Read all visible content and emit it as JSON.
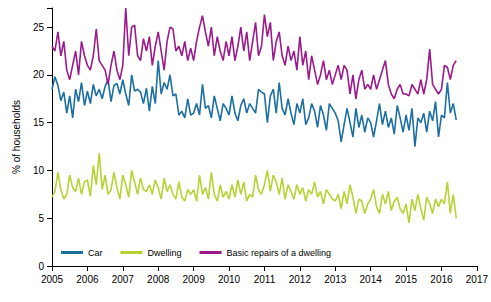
{
  "chart_data": {
    "type": "line",
    "y_label": "% of households",
    "xlim": [
      2005,
      2017
    ],
    "xticks": [
      2005,
      2006,
      2007,
      2008,
      2009,
      2010,
      2011,
      2012,
      2013,
      2014,
      2015,
      2016,
      2017
    ],
    "ylim": [
      0,
      27
    ],
    "yticks": [
      0,
      5,
      10,
      15,
      20,
      25
    ],
    "grid": false,
    "legend": "lower left",
    "x": [
      2005,
      2005.083,
      2005.167,
      2005.25,
      2005.333,
      2005.417,
      2005.5,
      2005.583,
      2005.667,
      2005.75,
      2005.833,
      2005.917,
      2006,
      2006.083,
      2006.167,
      2006.25,
      2006.333,
      2006.417,
      2006.5,
      2006.583,
      2006.667,
      2006.75,
      2006.833,
      2006.917,
      2007,
      2007.083,
      2007.167,
      2007.25,
      2007.333,
      2007.417,
      2007.5,
      2007.583,
      2007.667,
      2007.75,
      2007.833,
      2007.917,
      2008,
      2008.083,
      2008.167,
      2008.25,
      2008.333,
      2008.417,
      2008.5,
      2008.583,
      2008.667,
      2008.75,
      2008.833,
      2008.917,
      2009,
      2009.083,
      2009.167,
      2009.25,
      2009.333,
      2009.417,
      2009.5,
      2009.583,
      2009.667,
      2009.75,
      2009.833,
      2009.917,
      2010,
      2010.083,
      2010.167,
      2010.25,
      2010.333,
      2010.417,
      2010.5,
      2010.583,
      2010.667,
      2010.75,
      2010.833,
      2010.917,
      2011,
      2011.083,
      2011.167,
      2011.25,
      2011.333,
      2011.417,
      2011.5,
      2011.583,
      2011.667,
      2011.75,
      2011.833,
      2011.917,
      2012,
      2012.083,
      2012.167,
      2012.25,
      2012.333,
      2012.417,
      2012.5,
      2012.583,
      2012.667,
      2012.75,
      2012.833,
      2012.917,
      2013,
      2013.083,
      2013.167,
      2013.25,
      2013.333,
      2013.417,
      2013.5,
      2013.583,
      2013.667,
      2013.75,
      2013.833,
      2013.917,
      2014,
      2014.083,
      2014.167,
      2014.25,
      2014.333,
      2014.417,
      2014.5,
      2014.583,
      2014.667,
      2014.75,
      2014.833,
      2014.917,
      2015,
      2015.083,
      2015.167,
      2015.25,
      2015.333,
      2015.417,
      2015.5,
      2015.583,
      2015.667,
      2015.75,
      2015.833,
      2015.917,
      2016,
      2016.083,
      2016.167,
      2016.25,
      2016.333,
      2016.417
    ],
    "series": [
      {
        "name": "Car",
        "color": "#1b6fa3",
        "values": [
          18.5,
          19.8,
          18.9,
          17.3,
          18.2,
          16.0,
          17.8,
          15.5,
          18.5,
          17.2,
          19.2,
          16.8,
          18.3,
          17.0,
          19.0,
          17.8,
          18.5,
          17.5,
          18.8,
          19.5,
          17.2,
          18.9,
          19.1,
          18.0,
          19.5,
          18.0,
          16.8,
          20.0,
          18.3,
          18.5,
          18.2,
          17.0,
          18.6,
          16.2,
          18.8,
          17.0,
          21.5,
          18.0,
          19.2,
          18.5,
          20.0,
          17.8,
          18.0,
          15.8,
          16.2,
          15.5,
          17.5,
          15.8,
          16.0,
          17.0,
          15.8,
          19.0,
          16.5,
          16.8,
          15.5,
          17.8,
          16.5,
          15.2,
          17.0,
          16.5,
          15.8,
          17.8,
          16.0,
          15.2,
          16.8,
          17.5,
          16.0,
          17.0,
          16.5,
          16.0,
          18.5,
          18.2,
          18.0,
          15.0,
          17.8,
          18.5,
          16.0,
          19.2,
          16.5,
          15.8,
          17.5,
          16.0,
          14.8,
          17.0,
          16.0,
          17.5,
          14.8,
          15.5,
          17.0,
          16.2,
          14.5,
          16.8,
          15.8,
          14.2,
          17.0,
          16.5,
          16.0,
          15.2,
          13.0,
          14.8,
          16.5,
          15.0,
          13.5,
          16.5,
          14.5,
          15.8,
          14.0,
          15.5,
          15.0,
          13.5,
          15.2,
          17.0,
          14.8,
          16.2,
          14.5,
          15.5,
          13.8,
          16.8,
          15.5,
          14.0,
          15.8,
          14.2,
          16.5,
          12.5,
          15.5,
          15.0,
          16.0,
          14.0,
          16.2,
          15.2,
          17.2,
          13.5,
          15.8,
          15.5,
          19.2,
          16.0,
          17.0,
          15.3
        ]
      },
      {
        "name": "Dwelling",
        "color": "#b6d334",
        "values": [
          7.2,
          7.8,
          9.8,
          8.0,
          7.0,
          7.5,
          9.5,
          8.2,
          7.8,
          9.2,
          7.5,
          8.8,
          9.0,
          7.3,
          10.5,
          8.5,
          11.8,
          8.0,
          9.5,
          7.5,
          8.0,
          9.8,
          8.2,
          7.0,
          9.5,
          8.5,
          7.2,
          10.0,
          8.8,
          7.5,
          9.2,
          8.0,
          7.8,
          8.5,
          7.5,
          9.0,
          8.2,
          7.0,
          9.2,
          7.8,
          8.5,
          7.5,
          7.0,
          8.8,
          7.2,
          6.8,
          8.0,
          7.5,
          8.0,
          6.8,
          9.5,
          7.5,
          8.2,
          7.0,
          9.8,
          7.5,
          6.8,
          8.5,
          7.2,
          7.8,
          7.0,
          8.5,
          7.2,
          9.0,
          7.5,
          8.8,
          6.8,
          7.5,
          7.2,
          9.5,
          8.0,
          7.5,
          8.5,
          10.0,
          7.8,
          9.5,
          8.8,
          7.5,
          9.2,
          7.0,
          8.5,
          7.8,
          7.0,
          8.5,
          7.5,
          8.2,
          6.8,
          8.0,
          7.5,
          8.8,
          7.2,
          7.8,
          6.5,
          8.0,
          7.5,
          7.0,
          6.8,
          7.5,
          6.0,
          7.8,
          6.5,
          8.5,
          7.2,
          5.5,
          7.0,
          6.8,
          5.5,
          6.5,
          7.0,
          8.0,
          6.2,
          5.5,
          7.5,
          6.5,
          7.8,
          5.8,
          6.8,
          7.2,
          6.0,
          5.5,
          6.5,
          4.5,
          7.0,
          5.8,
          7.5,
          6.0,
          4.8,
          7.2,
          6.5,
          5.5,
          7.0,
          6.2,
          7.0,
          6.5,
          8.8,
          5.5,
          7.5,
          5.0
        ]
      },
      {
        "name": "Basic repairs of a dwelling",
        "color": "#9c1b8c",
        "values": [
          23.0,
          22.5,
          24.5,
          22.0,
          23.5,
          20.5,
          19.5,
          21.0,
          22.5,
          20.0,
          23.5,
          22.0,
          21.0,
          20.5,
          22.0,
          24.8,
          21.5,
          21.0,
          20.5,
          19.0,
          21.0,
          22.5,
          20.5,
          19.5,
          21.0,
          27.0,
          22.0,
          25.0,
          25.2,
          22.0,
          21.5,
          23.8,
          22.5,
          24.0,
          21.0,
          23.0,
          24.5,
          22.5,
          20.5,
          23.5,
          25.0,
          24.8,
          22.5,
          23.0,
          22.0,
          23.5,
          21.5,
          22.8,
          21.5,
          23.5,
          25.0,
          26.2,
          24.5,
          23.0,
          25.0,
          22.0,
          24.0,
          22.5,
          21.5,
          23.5,
          22.0,
          24.0,
          21.5,
          23.0,
          25.0,
          22.5,
          24.5,
          21.5,
          23.5,
          25.5,
          22.0,
          23.0,
          26.3,
          24.0,
          25.5,
          21.5,
          23.5,
          24.5,
          22.0,
          21.0,
          23.0,
          21.5,
          22.5,
          20.5,
          24.0,
          21.0,
          22.5,
          19.5,
          22.0,
          20.5,
          19.0,
          20.0,
          21.5,
          19.5,
          20.5,
          19.0,
          20.0,
          21.0,
          19.5,
          21.0,
          20.5,
          18.0,
          20.0,
          17.5,
          19.5,
          20.5,
          18.5,
          19.0,
          18.5,
          20.0,
          18.5,
          19.5,
          20.5,
          21.5,
          19.0,
          18.0,
          17.5,
          18.5,
          19.0,
          18.0,
          18.0,
          17.8,
          19.0,
          18.5,
          18.0,
          19.5,
          18.0,
          19.5,
          22.7,
          19.0,
          18.5,
          18.0,
          18.5,
          21.0,
          20.8,
          19.5,
          21.0,
          21.5
        ]
      }
    ]
  }
}
